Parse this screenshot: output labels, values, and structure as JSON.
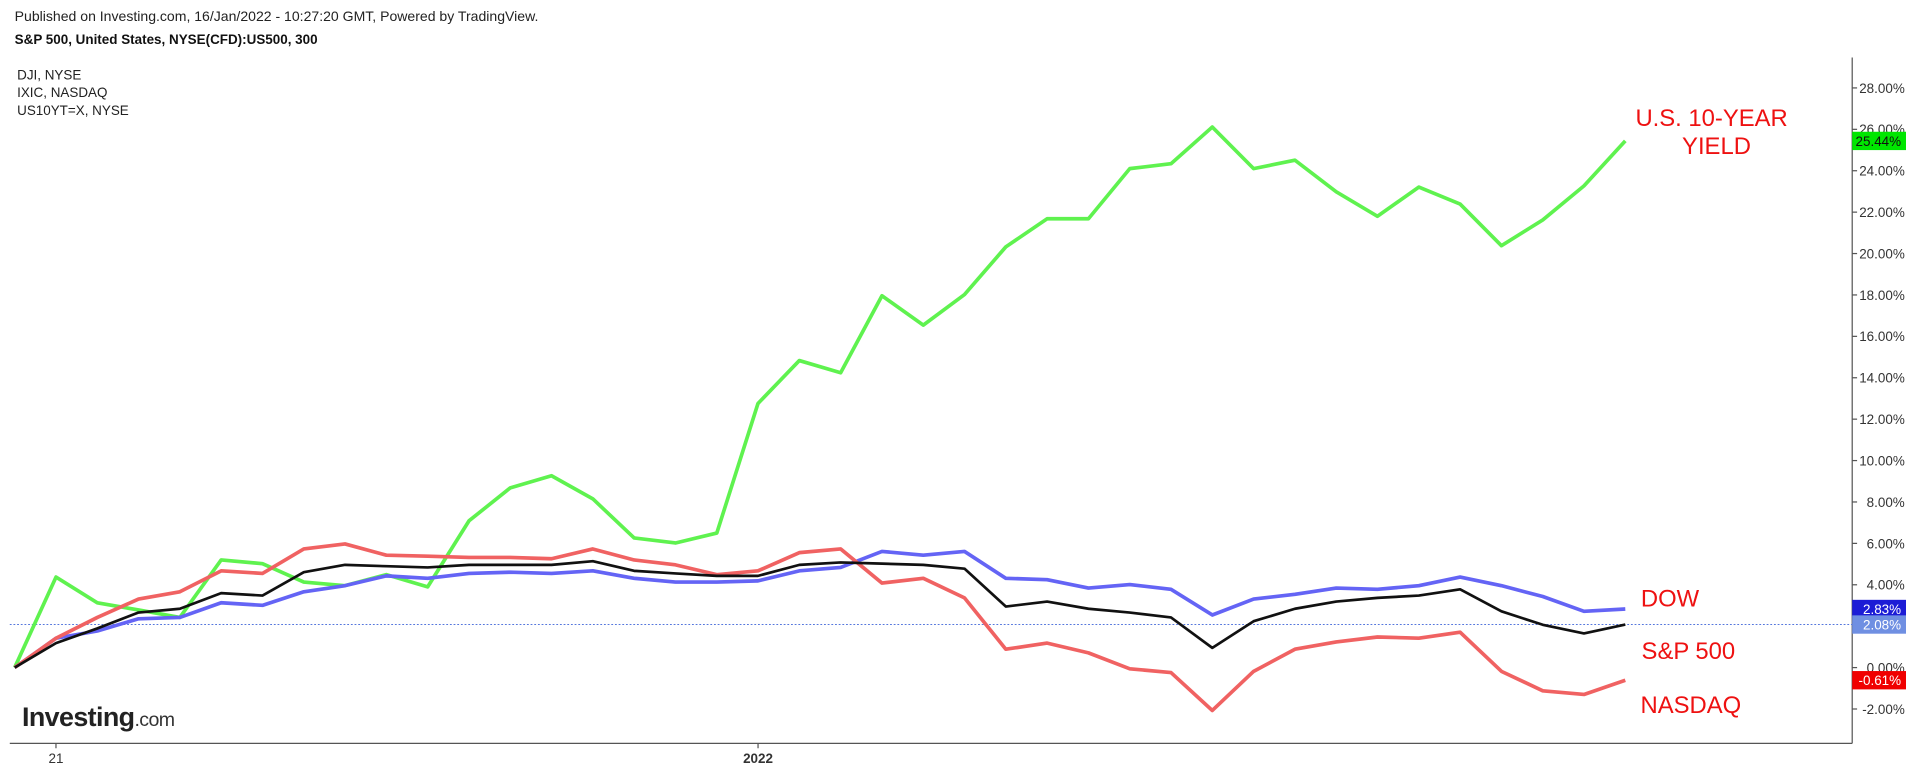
{
  "published": "Published on Investing.com, 16/Jan/2022 - 10:27:20 GMT, Powered by TradingView.",
  "chart_data": {
    "type": "line",
    "title": "S&P 500, United States, NYSE(CFD):US500, 300",
    "categories": [
      null,
      "21",
      null,
      null,
      null,
      null,
      null,
      null,
      null,
      null,
      null,
      null,
      null,
      null,
      null,
      null,
      null,
      null,
      "2022",
      null,
      null,
      null,
      null,
      null,
      null,
      null,
      null,
      null,
      null,
      null,
      null,
      null,
      null,
      null,
      null,
      null,
      null,
      null,
      null,
      null
    ],
    "series": [
      {
        "name": "US10YT=X, NYSE",
        "color": "#5ff24f",
        "label_color": "#00e600",
        "values": [
          0,
          4.37,
          3.13,
          2.78,
          2.42,
          5.2,
          5.02,
          4.13,
          3.96,
          4.49,
          3.9,
          7.09,
          8.68,
          9.27,
          8.15,
          6.26,
          6.02,
          6.5,
          12.76,
          14.83,
          14.24,
          17.96,
          16.54,
          18.02,
          20.32,
          21.68,
          21.68,
          24.1,
          24.34,
          26.11,
          24.1,
          24.51,
          22.98,
          21.8,
          23.21,
          22.39,
          20.38,
          21.62,
          23.27,
          25.44
        ],
        "value_labels": [
          null,
          null,
          null,
          null,
          null,
          null,
          null,
          null,
          null,
          null,
          null,
          null,
          null,
          null,
          null,
          null,
          null,
          null,
          null,
          null,
          null,
          null,
          null,
          null,
          null,
          null,
          null,
          null,
          null,
          null,
          null,
          null,
          null,
          null,
          null,
          null,
          null,
          null,
          null,
          "25.44%"
        ]
      },
      {
        "name": "DJI, NYSE",
        "color": "#6464f5",
        "label_color": "#1c1cd6",
        "values": [
          0,
          1.42,
          1.77,
          2.36,
          2.42,
          3.13,
          3.01,
          3.66,
          3.96,
          4.43,
          4.31,
          4.55,
          4.61,
          4.55,
          4.67,
          4.31,
          4.13,
          4.13,
          4.19,
          4.67,
          4.84,
          5.61,
          5.43,
          5.61,
          4.31,
          4.25,
          3.84,
          4.01,
          3.78,
          2.54,
          3.31,
          3.54,
          3.84,
          3.78,
          3.96,
          4.37,
          3.96,
          3.43,
          2.72,
          2.83
        ],
        "value_labels": [
          null,
          null,
          null,
          null,
          null,
          null,
          null,
          null,
          null,
          null,
          null,
          null,
          null,
          null,
          null,
          null,
          null,
          null,
          null,
          null,
          null,
          null,
          null,
          null,
          null,
          null,
          null,
          null,
          null,
          null,
          null,
          null,
          null,
          null,
          null,
          null,
          null,
          null,
          null,
          "2.83%"
        ]
      },
      {
        "name": "IXIC, NASDAQ",
        "color": "#f06262",
        "label_color": "#f00000",
        "values": [
          0,
          1.42,
          2.42,
          3.31,
          3.66,
          4.67,
          4.55,
          5.73,
          5.97,
          5.43,
          5.38,
          5.32,
          5.32,
          5.26,
          5.73,
          5.2,
          4.96,
          4.49,
          4.67,
          5.55,
          5.73,
          4.08,
          4.31,
          3.37,
          0.89,
          1.18,
          0.71,
          -0.06,
          -0.24,
          -2.07,
          -0.18,
          0.89,
          1.24,
          1.48,
          1.42,
          1.71,
          -0.18,
          -1.12,
          -1.3,
          -0.61
        ],
        "value_labels": [
          null,
          null,
          null,
          null,
          null,
          null,
          null,
          null,
          null,
          null,
          null,
          null,
          null,
          null,
          null,
          null,
          null,
          null,
          null,
          null,
          null,
          null,
          null,
          null,
          null,
          null,
          null,
          null,
          null,
          null,
          null,
          null,
          null,
          null,
          null,
          null,
          null,
          null,
          null,
          "-0.61%"
        ]
      },
      {
        "name": "S&P 500",
        "color": "#111111",
        "label_color": "#6f8fe2",
        "values": [
          0,
          1.18,
          1.89,
          2.66,
          2.84,
          3.6,
          3.48,
          4.61,
          4.96,
          4.9,
          4.84,
          4.96,
          4.96,
          4.96,
          5.14,
          4.67,
          4.55,
          4.43,
          4.43,
          4.96,
          5.08,
          5.02,
          4.96,
          4.78,
          2.95,
          3.19,
          2.84,
          2.66,
          2.42,
          0.95,
          2.24,
          2.84,
          3.19,
          3.37,
          3.48,
          3.78,
          2.72,
          2.07,
          1.65,
          2.08
        ],
        "value_labels": [
          null,
          null,
          null,
          null,
          null,
          null,
          null,
          null,
          null,
          null,
          null,
          null,
          null,
          null,
          null,
          null,
          null,
          null,
          null,
          null,
          null,
          null,
          null,
          null,
          null,
          null,
          null,
          null,
          null,
          null,
          null,
          null,
          null,
          null,
          null,
          null,
          null,
          null,
          null,
          "2.08%"
        ]
      }
    ],
    "ylim": [
      -3.66,
      29.47
    ],
    "yticks": [
      {
        "value": -2,
        "label": "-2.00%"
      },
      {
        "value": 0,
        "label": "0.00%"
      },
      {
        "value": 2,
        "label": "2.00%"
      },
      {
        "value": 4,
        "label": "4.00%"
      },
      {
        "value": 6,
        "label": "6.00%"
      },
      {
        "value": 8,
        "label": "8.00%"
      },
      {
        "value": 10,
        "label": "10.00%"
      },
      {
        "value": 12,
        "label": "12.00%"
      },
      {
        "value": 14,
        "label": "14.00%"
      },
      {
        "value": 16,
        "label": "16.00%"
      },
      {
        "value": 18,
        "label": "18.00%"
      },
      {
        "value": 20,
        "label": "20.00%"
      },
      {
        "value": 22,
        "label": "22.00%"
      },
      {
        "value": 24,
        "label": "24.00%"
      },
      {
        "value": 26,
        "label": "26.00%"
      },
      {
        "value": 28,
        "label": "28.00%"
      }
    ],
    "grid": false,
    "annotations": [
      "U.S. 10-YEAR",
      "YIELD",
      "DOW",
      "S&P 500",
      "NASDAQ"
    ],
    "annotation_color": "#ee1111",
    "logo": {
      "brand": "Investing",
      "suffix": ".com"
    }
  }
}
